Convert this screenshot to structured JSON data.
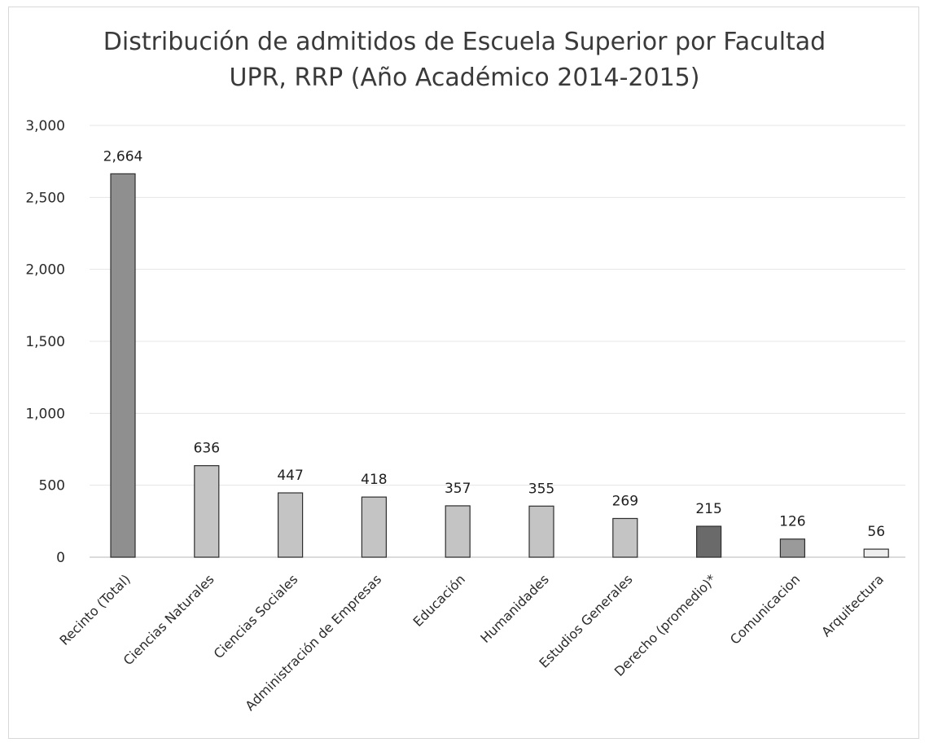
{
  "chart_data": {
    "type": "bar",
    "title_lines": [
      "Distribución de admitidos de Escuela Superior por Facultad",
      "UPR, RRP (Año Académico 2014-2015)"
    ],
    "xlabel": "",
    "ylabel": "",
    "ylim": [
      0,
      3000
    ],
    "yticks": [
      0,
      500,
      1000,
      1500,
      2000,
      2500,
      3000
    ],
    "ytick_labels": [
      "0",
      "500",
      "1,000",
      "1,500",
      "2,000",
      "2,500",
      "3,000"
    ],
    "grid": true,
    "legend": "none",
    "categories": [
      "Recinto (Total)",
      "Ciencias Naturales",
      "Ciencias Sociales",
      "Administración de Empresas",
      "Educación",
      "Humanidades",
      "Estudios Generales",
      "Derecho (promedio)*",
      "Comunicacion",
      "Arquitectura"
    ],
    "values": [
      2664,
      636,
      447,
      418,
      357,
      355,
      269,
      215,
      126,
      56
    ],
    "value_labels": [
      "2,664",
      "636",
      "447",
      "418",
      "357",
      "355",
      "269",
      "215",
      "126",
      "56"
    ],
    "bar_colors": [
      "#8f8f8f",
      "#c4c4c4",
      "#c4c4c4",
      "#c4c4c4",
      "#c4c4c4",
      "#c4c4c4",
      "#c4c4c4",
      "#6a6a6a",
      "#9a9a9a",
      "#eeeeee"
    ],
    "bar_outline_color": "#2e2e2e",
    "grid_color": "#e4e4e4",
    "axis_color": "#cfcfcf"
  }
}
